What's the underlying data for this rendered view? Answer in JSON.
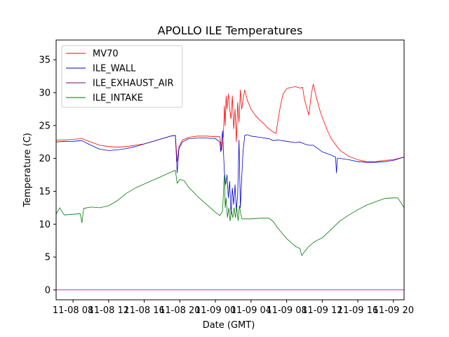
{
  "chart_data": {
    "type": "line",
    "title": "APOLLO ILE Temperatures",
    "xlabel": "Date (GMT)",
    "ylabel": "Temperature (C)",
    "xunit": "hours since 11-08 00:00 GMT",
    "xlim": [
      6.1,
      45.2
    ],
    "ylim": [
      -1.5,
      38
    ],
    "yticks": [
      0,
      5,
      10,
      15,
      20,
      25,
      30,
      35
    ],
    "xticks": [
      {
        "value": 8,
        "label": "11-08 08"
      },
      {
        "value": 12,
        "label": "11-08 12"
      },
      {
        "value": 16,
        "label": "11-08 16"
      },
      {
        "value": 20,
        "label": "11-08 20"
      },
      {
        "value": 24,
        "label": "11-09 00"
      },
      {
        "value": 28,
        "label": "11-09 04"
      },
      {
        "value": 32,
        "label": "11-09 08"
      },
      {
        "value": 36,
        "label": "11-09 12"
      },
      {
        "value": 40,
        "label": "11-09 16"
      },
      {
        "value": 44,
        "label": "11-09 20"
      }
    ],
    "legend_position": "upper-left",
    "series": [
      {
        "name": "MV70",
        "color": "#ff0000",
        "points": [
          [
            6.1,
            22.8
          ],
          [
            7.0,
            22.8
          ],
          [
            8.0,
            22.9
          ],
          [
            9.0,
            23.0
          ],
          [
            10.0,
            22.5
          ],
          [
            11.0,
            22.0
          ],
          [
            12.0,
            21.8
          ],
          [
            13.0,
            21.7
          ],
          [
            14.0,
            21.8
          ],
          [
            15.0,
            22.0
          ],
          [
            16.0,
            22.2
          ],
          [
            17.0,
            22.6
          ],
          [
            18.0,
            23.0
          ],
          [
            19.0,
            23.4
          ],
          [
            19.5,
            23.5
          ],
          [
            19.7,
            19.5
          ],
          [
            19.9,
            21.8
          ],
          [
            20.3,
            22.8
          ],
          [
            21.0,
            23.2
          ],
          [
            22.0,
            23.4
          ],
          [
            23.0,
            23.4
          ],
          [
            24.0,
            23.3
          ],
          [
            24.5,
            23.3
          ],
          [
            24.7,
            21.2
          ],
          [
            24.9,
            23.5
          ],
          [
            25.0,
            28.0
          ],
          [
            25.1,
            25.0
          ],
          [
            25.2,
            29.5
          ],
          [
            25.3,
            27.5
          ],
          [
            25.45,
            29.8
          ],
          [
            25.6,
            27.5
          ],
          [
            25.75,
            26.0
          ],
          [
            25.9,
            29.5
          ],
          [
            26.05,
            24.5
          ],
          [
            26.2,
            27.5
          ],
          [
            26.35,
            22.5
          ],
          [
            26.5,
            28.5
          ],
          [
            26.65,
            25.5
          ],
          [
            26.8,
            30.4
          ],
          [
            26.95,
            27.5
          ],
          [
            27.1,
            29.0
          ],
          [
            27.3,
            30.4
          ],
          [
            27.6,
            28.8
          ],
          [
            28.0,
            27.5
          ],
          [
            28.5,
            26.5
          ],
          [
            29.0,
            25.8
          ],
          [
            29.5,
            25.2
          ],
          [
            30.0,
            24.5
          ],
          [
            30.5,
            24.0
          ],
          [
            30.8,
            23.8
          ],
          [
            31.0,
            25.5
          ],
          [
            31.3,
            28.0
          ],
          [
            31.6,
            29.8
          ],
          [
            32.0,
            30.6
          ],
          [
            32.5,
            30.8
          ],
          [
            33.0,
            30.9
          ],
          [
            33.5,
            30.7
          ],
          [
            33.8,
            30.8
          ],
          [
            34.0,
            29.0
          ],
          [
            34.3,
            27.5
          ],
          [
            34.5,
            26.6
          ],
          [
            34.8,
            30.0
          ],
          [
            35.0,
            31.3
          ],
          [
            35.3,
            29.5
          ],
          [
            35.8,
            27.0
          ],
          [
            36.5,
            24.5
          ],
          [
            37.0,
            23.0
          ],
          [
            38.0,
            21.2
          ],
          [
            39.0,
            20.3
          ],
          [
            40.0,
            19.8
          ],
          [
            41.0,
            19.5
          ],
          [
            42.0,
            19.5
          ],
          [
            43.0,
            19.7
          ],
          [
            44.0,
            19.8
          ],
          [
            45.2,
            20.2
          ]
        ]
      },
      {
        "name": "ILE_WALL",
        "color": "#0000cc",
        "points": [
          [
            6.1,
            22.5
          ],
          [
            7.0,
            22.6
          ],
          [
            8.0,
            22.6
          ],
          [
            9.0,
            22.7
          ],
          [
            10.0,
            22.0
          ],
          [
            11.0,
            21.4
          ],
          [
            12.0,
            21.2
          ],
          [
            13.0,
            21.3
          ],
          [
            14.0,
            21.5
          ],
          [
            15.0,
            21.8
          ],
          [
            16.0,
            22.2
          ],
          [
            17.0,
            22.6
          ],
          [
            18.0,
            23.0
          ],
          [
            19.0,
            23.4
          ],
          [
            19.5,
            23.5
          ],
          [
            19.7,
            17.8
          ],
          [
            19.9,
            21.5
          ],
          [
            20.3,
            22.5
          ],
          [
            21.0,
            23.0
          ],
          [
            22.0,
            23.1
          ],
          [
            23.0,
            23.1
          ],
          [
            24.0,
            23.0
          ],
          [
            24.5,
            22.5
          ],
          [
            24.6,
            21.0
          ],
          [
            24.8,
            24.2
          ],
          [
            25.0,
            18.0
          ],
          [
            25.15,
            16.0
          ],
          [
            25.3,
            17.5
          ],
          [
            25.45,
            14.0
          ],
          [
            25.6,
            16.5
          ],
          [
            25.75,
            11.5
          ],
          [
            25.9,
            15.5
          ],
          [
            26.05,
            13.0
          ],
          [
            26.2,
            16.0
          ],
          [
            26.35,
            12.0
          ],
          [
            26.5,
            14.5
          ],
          [
            26.65,
            22.8
          ],
          [
            26.8,
            12.5
          ],
          [
            26.95,
            17.0
          ],
          [
            27.1,
            21.0
          ],
          [
            27.3,
            23.5
          ],
          [
            27.6,
            23.6
          ],
          [
            28.0,
            23.4
          ],
          [
            29.0,
            23.2
          ],
          [
            30.0,
            23.0
          ],
          [
            30.5,
            22.7
          ],
          [
            31.0,
            22.8
          ],
          [
            32.0,
            22.6
          ],
          [
            33.0,
            22.4
          ],
          [
            33.5,
            22.5
          ],
          [
            34.0,
            22.2
          ],
          [
            34.5,
            22.0
          ],
          [
            35.0,
            22.0
          ],
          [
            35.5,
            21.5
          ],
          [
            36.0,
            21.0
          ],
          [
            37.0,
            20.5
          ],
          [
            37.5,
            20.2
          ],
          [
            37.6,
            17.8
          ],
          [
            37.7,
            20.0
          ],
          [
            38.0,
            20.0
          ],
          [
            39.0,
            19.8
          ],
          [
            40.0,
            19.5
          ],
          [
            41.0,
            19.4
          ],
          [
            42.0,
            19.4
          ],
          [
            43.0,
            19.5
          ],
          [
            44.0,
            19.7
          ],
          [
            45.2,
            20.2
          ]
        ]
      },
      {
        "name": "ILE_EXHAUST_AIR",
        "color": "#800080",
        "points": [
          [
            6.1,
            0
          ],
          [
            45.2,
            0
          ]
        ]
      },
      {
        "name": "ILE_INTAKE",
        "color": "#007a00",
        "points": [
          [
            6.1,
            11.5
          ],
          [
            6.5,
            12.5
          ],
          [
            7.0,
            11.4
          ],
          [
            8.0,
            11.5
          ],
          [
            8.8,
            11.6
          ],
          [
            9.0,
            10.2
          ],
          [
            9.2,
            12.4
          ],
          [
            10.0,
            12.6
          ],
          [
            11.0,
            12.5
          ],
          [
            12.0,
            12.8
          ],
          [
            13.0,
            13.6
          ],
          [
            14.0,
            14.7
          ],
          [
            15.0,
            15.5
          ],
          [
            16.0,
            16.1
          ],
          [
            17.0,
            16.7
          ],
          [
            18.0,
            17.3
          ],
          [
            19.0,
            17.9
          ],
          [
            19.5,
            18.2
          ],
          [
            19.7,
            16.2
          ],
          [
            20.0,
            16.8
          ],
          [
            20.5,
            16.6
          ],
          [
            21.0,
            15.6
          ],
          [
            22.0,
            14.2
          ],
          [
            23.0,
            13.0
          ],
          [
            24.0,
            11.8
          ],
          [
            24.5,
            11.3
          ],
          [
            24.8,
            12.0
          ],
          [
            25.0,
            17.5
          ],
          [
            25.1,
            12.5
          ],
          [
            25.2,
            14.0
          ],
          [
            25.35,
            11.0
          ],
          [
            25.5,
            12.5
          ],
          [
            25.65,
            10.5
          ],
          [
            25.8,
            12.0
          ],
          [
            25.95,
            11.0
          ],
          [
            26.1,
            12.5
          ],
          [
            26.25,
            11.0
          ],
          [
            26.4,
            12.5
          ],
          [
            26.55,
            10.5
          ],
          [
            26.7,
            12.8
          ],
          [
            26.85,
            11.5
          ],
          [
            27.0,
            10.8
          ],
          [
            28.0,
            10.8
          ],
          [
            29.0,
            10.9
          ],
          [
            30.0,
            10.9
          ],
          [
            30.5,
            10.4
          ],
          [
            31.0,
            9.4
          ],
          [
            32.0,
            7.8
          ],
          [
            33.0,
            6.6
          ],
          [
            33.5,
            6.3
          ],
          [
            33.7,
            5.2
          ],
          [
            34.0,
            5.8
          ],
          [
            34.5,
            6.6
          ],
          [
            35.0,
            7.2
          ],
          [
            35.5,
            7.6
          ],
          [
            36.0,
            7.9
          ],
          [
            37.0,
            9.2
          ],
          [
            38.0,
            10.5
          ],
          [
            39.0,
            11.4
          ],
          [
            40.0,
            12.2
          ],
          [
            41.0,
            12.9
          ],
          [
            42.0,
            13.4
          ],
          [
            43.0,
            13.9
          ],
          [
            44.0,
            14.0
          ],
          [
            44.5,
            14.0
          ],
          [
            45.2,
            12.5
          ]
        ]
      }
    ]
  }
}
